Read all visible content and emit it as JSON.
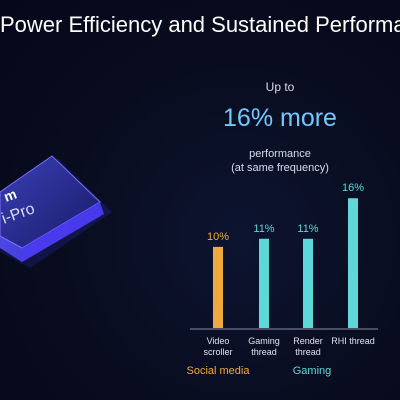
{
  "slide": {
    "title": "Power Efficiency and Sustained Performa",
    "chip_text": "m",
    "chip_text2": "i-Pro"
  },
  "headline": {
    "up_to": "Up to",
    "big": "16% more",
    "perf_line1": "performance",
    "perf_line2": "(at same frequency)"
  },
  "colors": {
    "social": "#f2a93b",
    "gaming": "#5ed7d9",
    "accent": "#6fc9ff",
    "axis": "#8a8ea4"
  },
  "chart_data": {
    "type": "bar",
    "categories": [
      [
        "Video",
        "scroller"
      ],
      [
        "Gaming",
        "thread"
      ],
      [
        "Render",
        "thread"
      ],
      [
        "RHI thread"
      ]
    ],
    "series": [
      {
        "values": [
          10,
          11,
          11,
          16
        ]
      }
    ],
    "value_labels": [
      "10%",
      "11%",
      "11%",
      "16%"
    ],
    "groups": [
      {
        "label": "Social media",
        "color": "#f2a93b",
        "members": [
          0
        ]
      },
      {
        "label": "Gaming",
        "color": "#5ed7d9",
        "members": [
          1,
          2,
          3
        ]
      }
    ],
    "ylim": [
      0,
      18
    ],
    "grid": false,
    "legend": "none"
  }
}
